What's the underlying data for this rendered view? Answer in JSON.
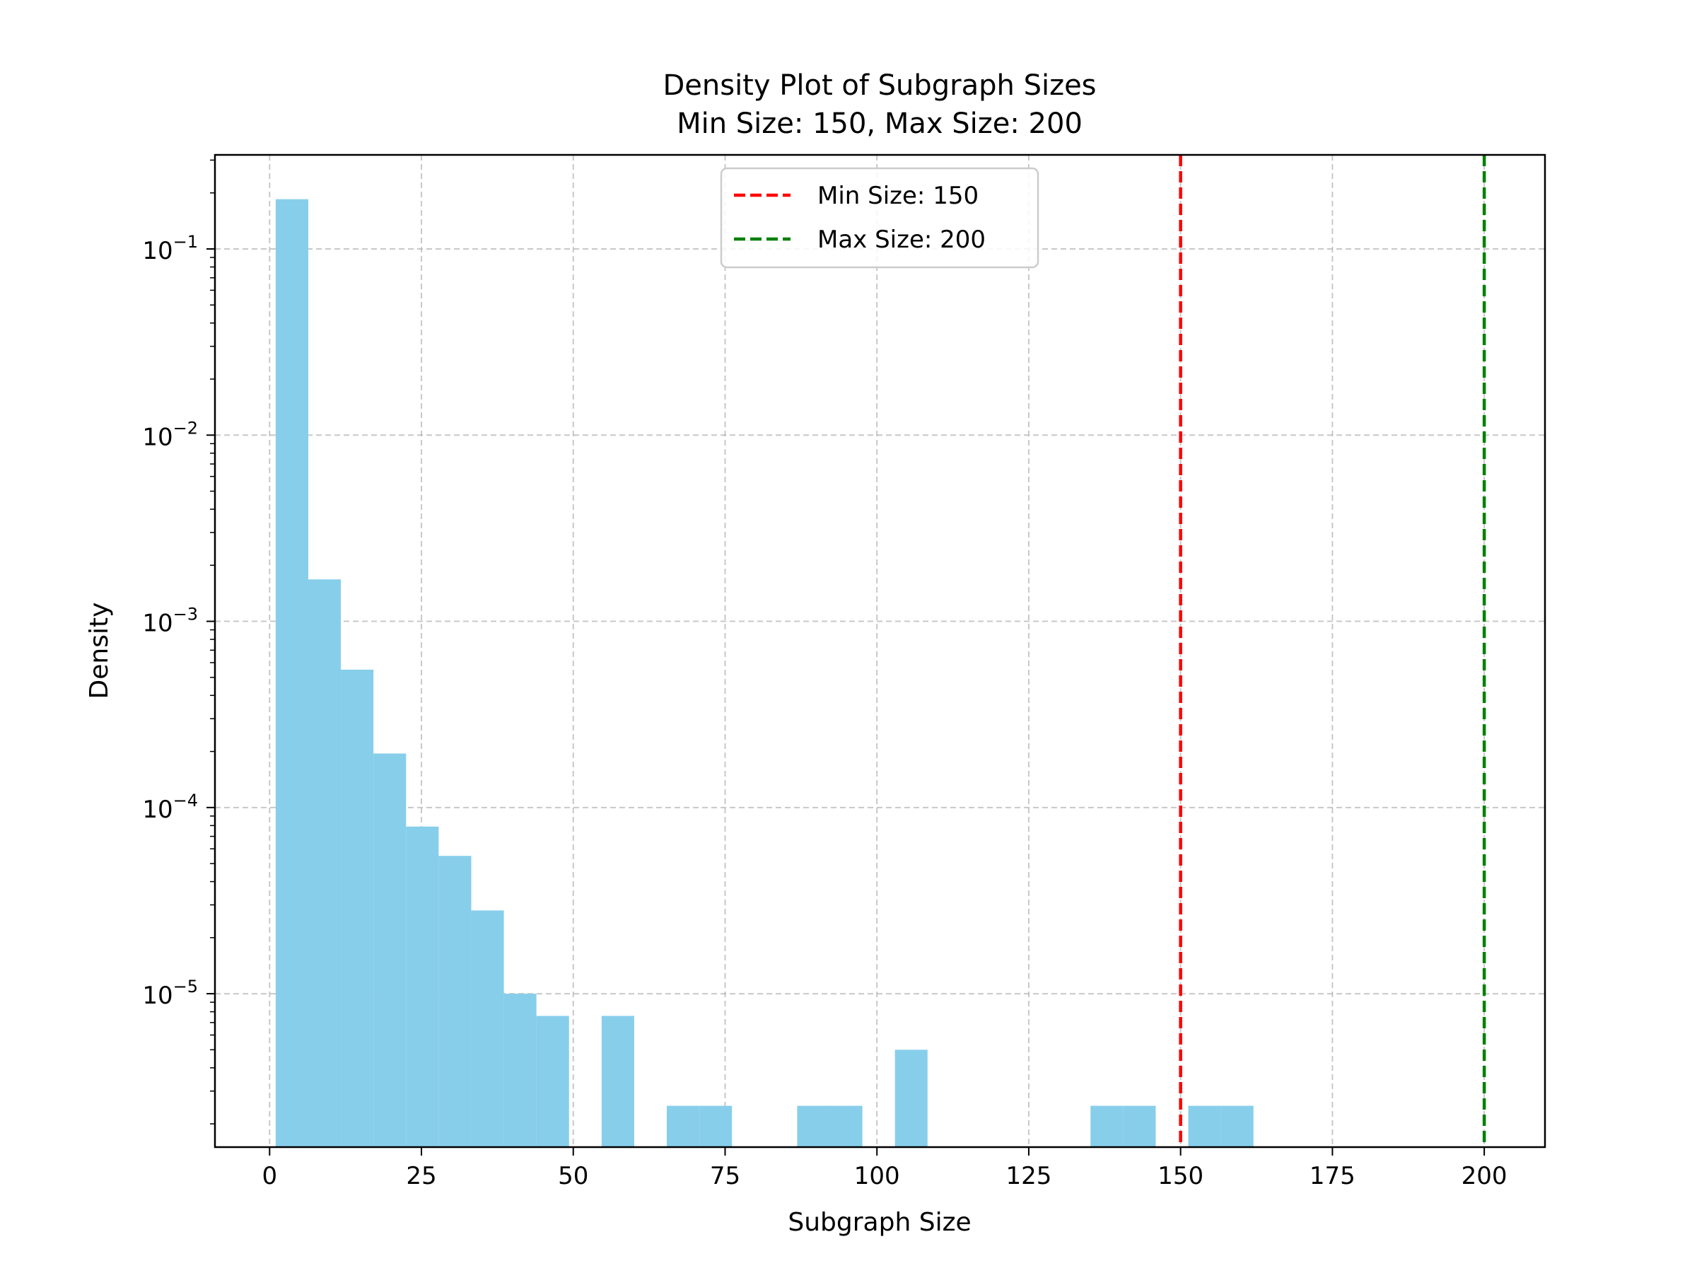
{
  "chart_data": {
    "type": "bar",
    "title": "Density Plot of Subgraph Sizes",
    "subtitle": "Min Size: 150, Max Size: 200",
    "xlabel": "Subgraph Size",
    "ylabel": "Density",
    "xlim": [
      -9,
      210
    ],
    "ylim": [
      1.5e-06,
      0.32
    ],
    "yscale": "log",
    "grid": true,
    "legend_position": "top-center",
    "x_ticks": [
      0,
      25,
      50,
      75,
      100,
      125,
      150,
      175,
      200
    ],
    "x_tick_labels": [
      "0",
      "25",
      "50",
      "75",
      "100",
      "125",
      "150",
      "175",
      "200"
    ],
    "y_ticks": [
      {
        "value": 0.1,
        "base": "10",
        "exp": "−1"
      },
      {
        "value": 0.01,
        "base": "10",
        "exp": "−2"
      },
      {
        "value": 0.001,
        "base": "10",
        "exp": "−3"
      },
      {
        "value": 0.0001,
        "base": "10",
        "exp": "−4"
      },
      {
        "value": 1e-05,
        "base": "10",
        "exp": "−5"
      }
    ],
    "bin_edges": [
      1,
      6.37,
      11.73,
      17.1,
      22.47,
      27.83,
      33.2,
      38.57,
      43.93,
      49.3,
      54.67,
      60.03,
      65.4,
      70.77,
      76.13,
      81.5,
      86.87,
      92.23,
      97.6,
      102.97,
      108.33,
      113.7,
      119.07,
      124.43,
      129.8,
      135.17,
      140.53,
      145.9,
      151.27,
      156.63,
      162
    ],
    "values": [
      0.185,
      0.00168,
      0.00055,
      0.000195,
      7.9e-05,
      5.5e-05,
      2.8e-05,
      1e-05,
      7.6e-06,
      0,
      7.6e-06,
      0,
      2.5e-06,
      2.5e-06,
      0,
      0,
      2.5e-06,
      2.5e-06,
      0,
      5e-06,
      0,
      0,
      0,
      0,
      0,
      2.5e-06,
      2.5e-06,
      0,
      2.5e-06,
      2.5e-06
    ],
    "bar_color": "#87ceeb",
    "reference_lines": [
      {
        "name": "Min Size: 150",
        "x": 150,
        "color": "#ff0000",
        "style": "dashed"
      },
      {
        "name": "Max Size: 200",
        "x": 200,
        "color": "#008000",
        "style": "dashed"
      }
    ]
  }
}
